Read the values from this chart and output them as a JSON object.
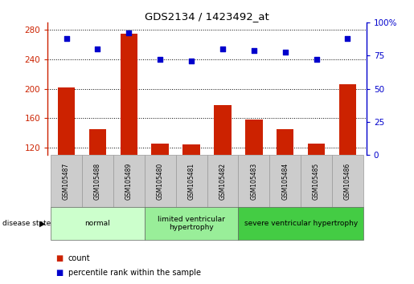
{
  "title": "GDS2134 / 1423492_at",
  "samples": [
    "GSM105487",
    "GSM105488",
    "GSM105489",
    "GSM105480",
    "GSM105481",
    "GSM105482",
    "GSM105483",
    "GSM105484",
    "GSM105485",
    "GSM105486"
  ],
  "counts": [
    202,
    145,
    275,
    125,
    124,
    178,
    158,
    145,
    125,
    206
  ],
  "percentiles": [
    88,
    80,
    92,
    72,
    71,
    80,
    79,
    78,
    72,
    88
  ],
  "ylim_left": [
    110,
    290
  ],
  "ylim_right": [
    0,
    100
  ],
  "yticks_left": [
    120,
    160,
    200,
    240,
    280
  ],
  "yticks_right": [
    0,
    25,
    50,
    75,
    100
  ],
  "groups": [
    {
      "label": "normal",
      "start": 0,
      "end": 3,
      "color": "#ccffcc"
    },
    {
      "label": "limited ventricular\nhypertrophy",
      "start": 3,
      "end": 6,
      "color": "#99ee99"
    },
    {
      "label": "severe ventricular hypertrophy",
      "start": 6,
      "end": 10,
      "color": "#44cc44"
    }
  ],
  "bar_color": "#cc2200",
  "dot_color": "#0000cc",
  "grid_color": "#000000",
  "bar_width": 0.55,
  "left_tick_color": "#cc2200",
  "right_tick_color": "#0000cc",
  "legend_items": [
    "count",
    "percentile rank within the sample"
  ],
  "disease_state_label": "disease state",
  "bg_color": "#ffffff",
  "plot_bg_color": "#ffffff",
  "sample_box_color": "#cccccc"
}
